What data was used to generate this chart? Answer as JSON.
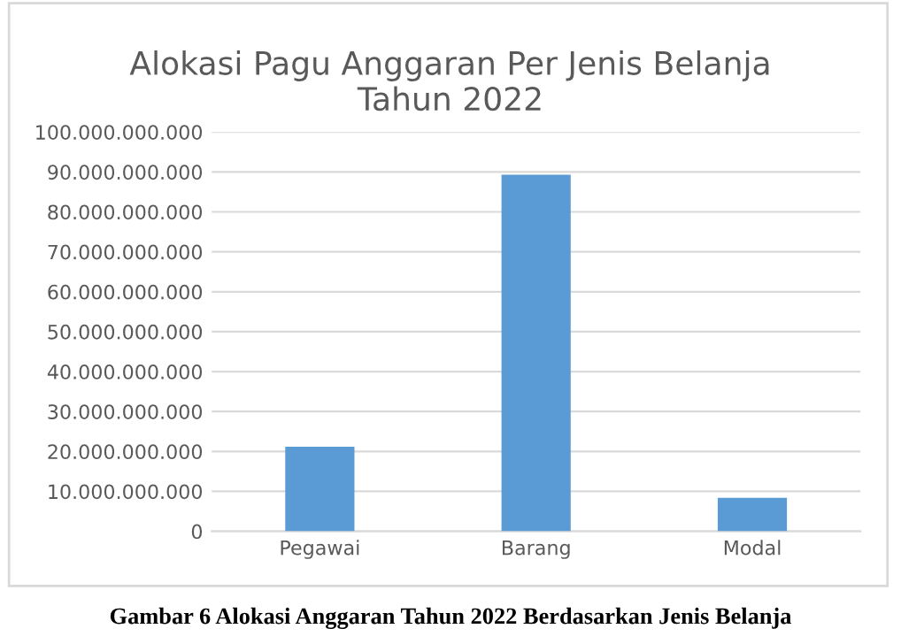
{
  "chart_data": {
    "type": "bar",
    "title": "Alokasi Pagu Anggaran Per Jenis Belanja\nTahun 2022",
    "categories": [
      "Pegawai",
      "Barang",
      "Modal"
    ],
    "values": [
      21200000000,
      89300000000,
      8400000000
    ],
    "color": "#5b9bd5",
    "ylim": [
      0,
      100000000000
    ],
    "yticks": [
      {
        "value": 0,
        "label": "0"
      },
      {
        "value": 10000000000,
        "label": "10.000.000.000"
      },
      {
        "value": 20000000000,
        "label": "20.000.000.000"
      },
      {
        "value": 30000000000,
        "label": "30.000.000.000"
      },
      {
        "value": 40000000000,
        "label": "40.000.000.000"
      },
      {
        "value": 50000000000,
        "label": "50.000.000.000"
      },
      {
        "value": 60000000000,
        "label": "60.000.000.000"
      },
      {
        "value": 70000000000,
        "label": "70.000.000.000"
      },
      {
        "value": 80000000000,
        "label": "80.000.000.000"
      },
      {
        "value": 90000000000,
        "label": "90.000.000.000"
      },
      {
        "value": 100000000000,
        "label": "100.000.000.000"
      }
    ],
    "grid": "y",
    "annotations": [
      "Gambar 6 Alokasi Anggaran Tahun 2022 Berdasarkan Jenis Belanja"
    ]
  }
}
